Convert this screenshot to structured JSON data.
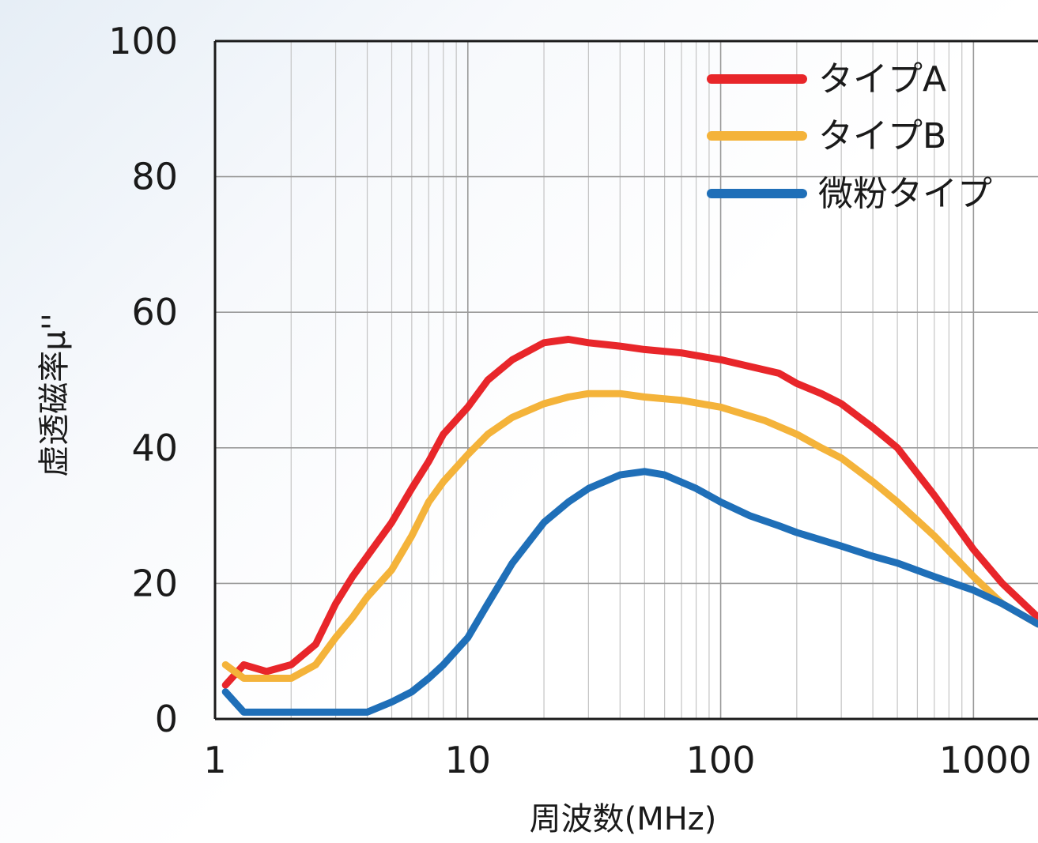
{
  "chart_data": {
    "type": "line",
    "xlabel": "周波数(MHz)",
    "ylabel": "虚透磁率μ''",
    "x_scale": "log",
    "xlim": [
      1,
      1800
    ],
    "ylim": [
      0,
      100
    ],
    "x_ticks": [
      1,
      10,
      100,
      1000
    ],
    "x_tick_labels": [
      "1",
      "10",
      "100",
      "1000"
    ],
    "y_ticks": [
      0,
      20,
      40,
      60,
      80,
      100
    ],
    "y_tick_labels": [
      "0",
      "20",
      "40",
      "60",
      "80",
      "100"
    ],
    "grid": true,
    "legend_position": "top-right",
    "series": [
      {
        "name": "タイプA",
        "color": "#e8262a",
        "points": [
          [
            1.1,
            5
          ],
          [
            1.3,
            8
          ],
          [
            1.6,
            7
          ],
          [
            2,
            8
          ],
          [
            2.5,
            11
          ],
          [
            3,
            17
          ],
          [
            3.5,
            21
          ],
          [
            4,
            24
          ],
          [
            5,
            29
          ],
          [
            6,
            34
          ],
          [
            7,
            38
          ],
          [
            8,
            42
          ],
          [
            10,
            46
          ],
          [
            12,
            50
          ],
          [
            15,
            53
          ],
          [
            20,
            55.5
          ],
          [
            25,
            56
          ],
          [
            30,
            55.5
          ],
          [
            40,
            55
          ],
          [
            50,
            54.5
          ],
          [
            70,
            54
          ],
          [
            100,
            53
          ],
          [
            130,
            52
          ],
          [
            170,
            51
          ],
          [
            200,
            49.5
          ],
          [
            250,
            48
          ],
          [
            300,
            46.5
          ],
          [
            400,
            43
          ],
          [
            500,
            40
          ],
          [
            700,
            33
          ],
          [
            1000,
            25
          ],
          [
            1300,
            20
          ],
          [
            1800,
            15
          ]
        ]
      },
      {
        "name": "タイプB",
        "color": "#f4b33a",
        "points": [
          [
            1.1,
            8
          ],
          [
            1.3,
            6
          ],
          [
            1.6,
            6
          ],
          [
            2,
            6
          ],
          [
            2.5,
            8
          ],
          [
            3,
            12
          ],
          [
            3.5,
            15
          ],
          [
            4,
            18
          ],
          [
            5,
            22
          ],
          [
            6,
            27
          ],
          [
            7,
            32
          ],
          [
            8,
            35
          ],
          [
            10,
            39
          ],
          [
            12,
            42
          ],
          [
            15,
            44.5
          ],
          [
            20,
            46.5
          ],
          [
            25,
            47.5
          ],
          [
            30,
            48
          ],
          [
            40,
            48
          ],
          [
            50,
            47.5
          ],
          [
            70,
            47
          ],
          [
            100,
            46
          ],
          [
            150,
            44
          ],
          [
            200,
            42
          ],
          [
            250,
            40
          ],
          [
            300,
            38.5
          ],
          [
            400,
            35
          ],
          [
            500,
            32
          ],
          [
            700,
            27
          ],
          [
            1000,
            21
          ],
          [
            1300,
            17
          ],
          [
            1800,
            14
          ]
        ]
      },
      {
        "name": "微粉タイプ",
        "color": "#1f6fb8",
        "points": [
          [
            1.1,
            4
          ],
          [
            1.3,
            1
          ],
          [
            1.6,
            1
          ],
          [
            2,
            1
          ],
          [
            2.5,
            1
          ],
          [
            3,
            1
          ],
          [
            4,
            1
          ],
          [
            5,
            2.5
          ],
          [
            6,
            4
          ],
          [
            7,
            6
          ],
          [
            8,
            8
          ],
          [
            10,
            12
          ],
          [
            12,
            17
          ],
          [
            15,
            23
          ],
          [
            20,
            29
          ],
          [
            25,
            32
          ],
          [
            30,
            34
          ],
          [
            40,
            36
          ],
          [
            50,
            36.5
          ],
          [
            60,
            36
          ],
          [
            80,
            34
          ],
          [
            100,
            32
          ],
          [
            130,
            30
          ],
          [
            170,
            28.5
          ],
          [
            200,
            27.5
          ],
          [
            300,
            25.5
          ],
          [
            400,
            24
          ],
          [
            500,
            23
          ],
          [
            700,
            21
          ],
          [
            1000,
            19
          ],
          [
            1300,
            17
          ],
          [
            1800,
            14
          ]
        ]
      }
    ]
  }
}
